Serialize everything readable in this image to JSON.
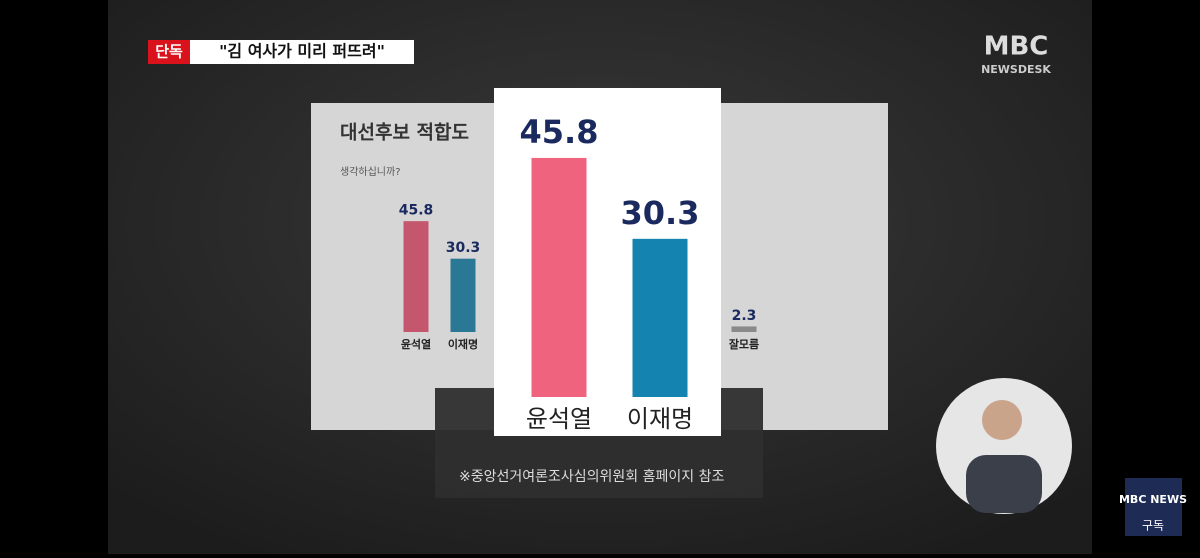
{
  "header": {
    "badge": "단독",
    "headline": "\"김 여사가 미리 퍼뜨려\""
  },
  "logo": {
    "brand": "MBC",
    "program": "NEWSDESK"
  },
  "chart_data": [
    {
      "type": "bar",
      "title": "대선후보 적합도",
      "subtitle": "생각하십니까?",
      "categories": [
        "윤석열",
        "이재명",
        "잘모름"
      ],
      "values": [
        45.8,
        30.3,
        2.3
      ],
      "colors": [
        "#c4566e",
        "#2a7896",
        "#8a8a8a"
      ]
    },
    {
      "type": "bar",
      "categories": [
        "윤석열",
        "이재명"
      ],
      "values": [
        45.8,
        30.3
      ],
      "colors": [
        "#f0637f",
        "#1583b0"
      ]
    }
  ],
  "footnote": "※중앙선거여론조사심의위원회 홈페이지 참조",
  "corner": {
    "brand": "MBC NEWS",
    "action": "구독"
  }
}
